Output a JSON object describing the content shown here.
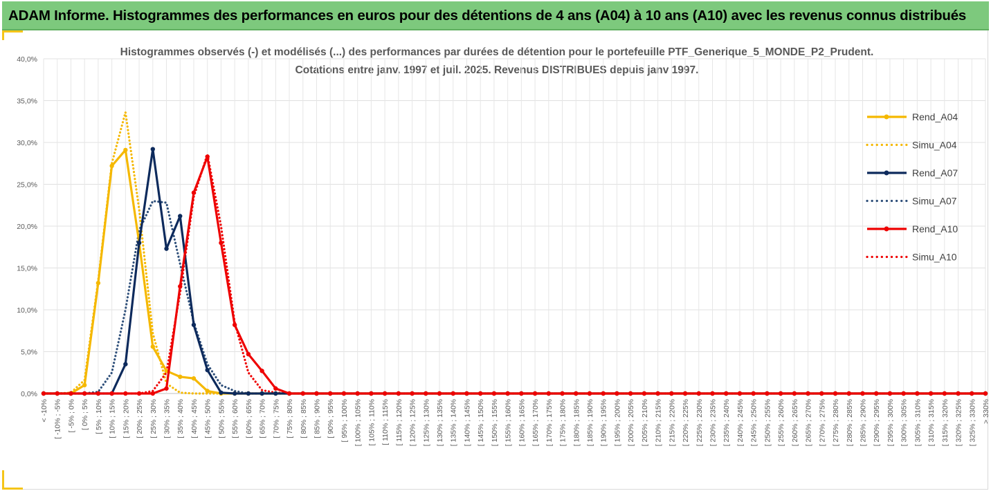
{
  "banner": {
    "title": "ADAM Informe. Histogrammes des performances en euros pour des détentions de 4 ans (A04) à 10 ans (A10) avec les revenus connus distribués"
  },
  "colors": {
    "banner_bg": "#7dc97d",
    "accent": "#f5c518",
    "A04": "#f5b800",
    "A07": "#0d2a5c",
    "A07_sim": "#2e4f7a",
    "A10": "#ee0000"
  },
  "chart_data": {
    "type": "line",
    "title_lines": [
      "Histogrammes observés (-) et modélisés (...) des performances par durées de détention pour  le portefeuille PTF_Generique_5_MONDE_P2_Prudent.",
      "Cotations entre janv. 1997 et juil. 2025. Revenus DISTRIBUES depuis janv 1997."
    ],
    "ylim": [
      0,
      40
    ],
    "yticks": [
      "0,0%",
      "5,0%",
      "10,0%",
      "15,0%",
      "20,0%",
      "25,0%",
      "30,0%",
      "35,0%",
      "40,0%"
    ],
    "grid": true,
    "legend_position": "right",
    "categories": [
      "< -10%",
      "[ -10% ; -5%",
      "[ -5% ; 0%",
      "[ 0% ; 5%",
      "[ 5% ; 10%",
      "[ 10% ; 15%",
      "[ 15% ; 20%",
      "[ 20% ; 25%",
      "[ 25% ; 30%",
      "[ 30% ; 35%",
      "[ 35% ; 40%",
      "[ 40% ; 45%",
      "[ 45% ; 50%",
      "[ 50% ; 55%",
      "[ 55% ; 60%",
      "[ 60% ; 65%",
      "[ 65% ; 70%",
      "[ 70% ; 75%",
      "[ 75% ; 80%",
      "[ 80% ; 85%",
      "[ 85% ; 90%",
      "[ 90% ; 95%",
      "[ 95% ; 100%",
      "[ 100% ; 105%",
      "[ 105% ; 110%",
      "[ 110% ; 115%",
      "[ 115% ; 120%",
      "[ 120% ; 125%",
      "[ 125% ; 130%",
      "[ 130% ; 135%",
      "[ 135% ; 140%",
      "[ 140% ; 145%",
      "[ 145% ; 150%",
      "[ 150% ; 155%",
      "[ 155% ; 160%",
      "[ 160% ; 165%",
      "[ 165% ; 170%",
      "[ 170% ; 175%",
      "[ 175% ; 180%",
      "[ 180% ; 185%",
      "[ 185% ; 190%",
      "[ 190% ; 195%",
      "[ 195% ; 200%",
      "[ 200% ; 205%",
      "[ 205% ; 210%",
      "[ 210% ; 215%",
      "[ 215% ; 220%",
      "[ 220% ; 225%",
      "[ 225% ; 230%",
      "[ 230% ; 235%",
      "[ 235% ; 240%",
      "[ 240% ; 245%",
      "[ 245% ; 250%",
      "[ 250% ; 255%",
      "[ 255% ; 260%",
      "[ 260% ; 265%",
      "[ 265% ; 270%",
      "[ 270% ; 275%",
      "[ 275% ; 280%",
      "[ 280% ; 285%",
      "[ 285% ; 290%",
      "[ 290% ; 295%",
      "[ 295% ; 300%",
      "[ 300% ; 305%",
      "[ 305% ; 310%",
      "[ 310% ; 315%",
      "[ 315% ; 320%",
      "[ 320% ; 325%",
      "[ 325% ; 330%",
      "> 330%"
    ],
    "series": [
      {
        "name": "Rend_A04",
        "style": "solid",
        "markers": true,
        "color": "#f5b800",
        "values": [
          0,
          0,
          0,
          1.0,
          13.2,
          27.2,
          29.1,
          18.0,
          5.6,
          2.7,
          2.0,
          1.8,
          0.3,
          0,
          0,
          0,
          0,
          0,
          0,
          0,
          0,
          0,
          0,
          0,
          0,
          0,
          0,
          0,
          0,
          0,
          0,
          0,
          0,
          0,
          0,
          0,
          0,
          0,
          0,
          0,
          0,
          0,
          0,
          0,
          0,
          0,
          0,
          0,
          0,
          0,
          0,
          0,
          0,
          0,
          0,
          0,
          0,
          0,
          0,
          0,
          0,
          0,
          0,
          0,
          0,
          0,
          0,
          0,
          0,
          0
        ]
      },
      {
        "name": "Simu_A04",
        "style": "dotted",
        "markers": false,
        "color": "#f5b800",
        "values": [
          0,
          0,
          0.1,
          1.6,
          13.5,
          27.5,
          33.6,
          22.0,
          7.2,
          1.2,
          0.1,
          0,
          0,
          0,
          0,
          0,
          0,
          0,
          0,
          0,
          0,
          0,
          0,
          0,
          0,
          0,
          0,
          0,
          0,
          0,
          0,
          0,
          0,
          0,
          0,
          0,
          0,
          0,
          0,
          0,
          0,
          0,
          0,
          0,
          0,
          0,
          0,
          0,
          0,
          0,
          0,
          0,
          0,
          0,
          0,
          0,
          0,
          0,
          0,
          0,
          0,
          0,
          0,
          0,
          0,
          0,
          0,
          0,
          0,
          0
        ]
      },
      {
        "name": "Rend_A07",
        "style": "solid",
        "markers": true,
        "color": "#0d2a5c",
        "values": [
          0,
          0,
          0,
          0,
          0,
          0,
          3.5,
          18.0,
          29.2,
          17.3,
          21.2,
          8.2,
          2.8,
          0.1,
          0,
          0,
          0,
          0,
          0,
          0,
          0,
          0,
          0,
          0,
          0,
          0,
          0,
          0,
          0,
          0,
          0,
          0,
          0,
          0,
          0,
          0,
          0,
          0,
          0,
          0,
          0,
          0,
          0,
          0,
          0,
          0,
          0,
          0,
          0,
          0,
          0,
          0,
          0,
          0,
          0,
          0,
          0,
          0,
          0,
          0,
          0,
          0,
          0,
          0,
          0,
          0,
          0,
          0,
          0,
          0
        ]
      },
      {
        "name": "Simu_A07",
        "style": "dotted",
        "markers": false,
        "color": "#2e4f7a",
        "values": [
          0,
          0,
          0,
          0,
          0.2,
          2.5,
          10.0,
          19.5,
          23.0,
          22.8,
          15.5,
          8.5,
          3.5,
          1.0,
          0.3,
          0,
          0,
          0,
          0,
          0,
          0,
          0,
          0,
          0,
          0,
          0,
          0,
          0,
          0,
          0,
          0,
          0,
          0,
          0,
          0,
          0,
          0,
          0,
          0,
          0,
          0,
          0,
          0,
          0,
          0,
          0,
          0,
          0,
          0,
          0,
          0,
          0,
          0,
          0,
          0,
          0,
          0,
          0,
          0,
          0,
          0,
          0,
          0,
          0,
          0,
          0,
          0,
          0,
          0,
          0
        ]
      },
      {
        "name": "Rend_A10",
        "style": "solid",
        "markers": true,
        "color": "#ee0000",
        "values": [
          0,
          0,
          0,
          0,
          0,
          0,
          0,
          0,
          0,
          0.6,
          12.8,
          24.0,
          28.3,
          18.0,
          8.2,
          4.7,
          2.7,
          0.6,
          0,
          0,
          0,
          0,
          0,
          0,
          0,
          0,
          0,
          0,
          0,
          0,
          0,
          0,
          0,
          0,
          0,
          0,
          0,
          0,
          0,
          0,
          0,
          0,
          0,
          0,
          0,
          0,
          0,
          0,
          0,
          0,
          0,
          0,
          0,
          0,
          0,
          0,
          0,
          0,
          0,
          0,
          0,
          0,
          0,
          0,
          0,
          0,
          0,
          0,
          0,
          0
        ]
      },
      {
        "name": "Simu_A10",
        "style": "dotted",
        "markers": false,
        "color": "#ee0000",
        "values": [
          0,
          0,
          0,
          0,
          0,
          0,
          0,
          0,
          0.3,
          2.5,
          12.0,
          23.5,
          28.6,
          20.0,
          8.5,
          2.5,
          0.4,
          0.1,
          0,
          0,
          0,
          0,
          0,
          0,
          0,
          0,
          0,
          0,
          0,
          0,
          0,
          0,
          0,
          0,
          0,
          0,
          0,
          0,
          0,
          0,
          0,
          0,
          0,
          0,
          0,
          0,
          0,
          0,
          0,
          0,
          0,
          0,
          0,
          0,
          0,
          0,
          0,
          0,
          0,
          0,
          0,
          0,
          0,
          0,
          0,
          0,
          0,
          0,
          0,
          0
        ]
      }
    ]
  }
}
